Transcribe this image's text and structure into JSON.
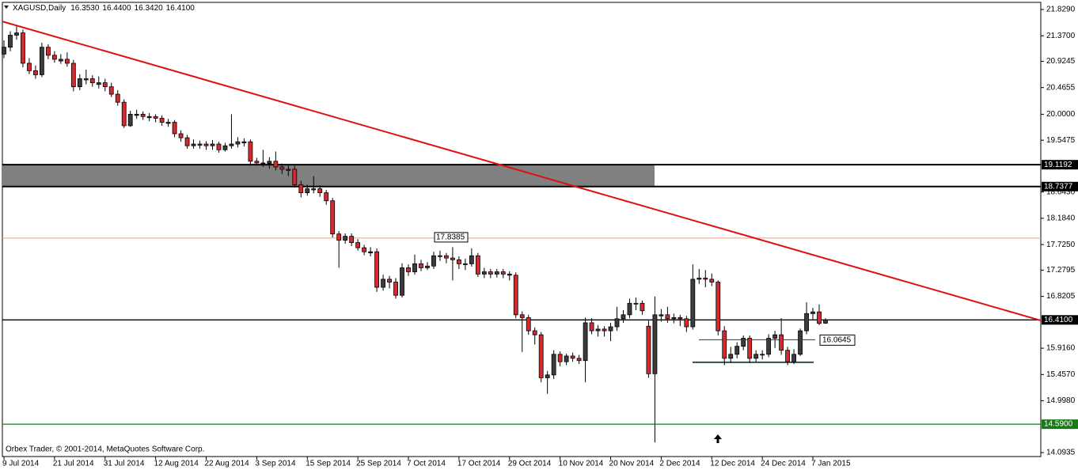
{
  "chart_data": {
    "type": "candlestick",
    "symbol": "XAGUSD,Daily",
    "ohlc_labels": [
      "16.3530",
      "16.4400",
      "16.3420",
      "16.4100"
    ],
    "footer": "Orbex Trader, © 2001-2014, MetaQuotes Software Corp.",
    "ylim": [
      14.025,
      21.953
    ],
    "yticks": [
      {
        "value": 21.829,
        "label": "21.8290"
      },
      {
        "value": 21.37,
        "label": "21.3700"
      },
      {
        "value": 20.9245,
        "label": "20.9245"
      },
      {
        "value": 20.4655,
        "label": "20.4655"
      },
      {
        "value": 20,
        "label": "20.0000"
      },
      {
        "value": 19.5475,
        "label": "19.5475"
      },
      {
        "value": 18.643,
        "label": "18.6430"
      },
      {
        "value": 18.184,
        "label": "18.1840"
      },
      {
        "value": 17.725,
        "label": "17.7250"
      },
      {
        "value": 17.2795,
        "label": "17.2795"
      },
      {
        "value": 16.8205,
        "label": "16.8205"
      },
      {
        "value": 15.916,
        "label": "15.9160"
      },
      {
        "value": 15.457,
        "label": "15.4570"
      },
      {
        "value": 14.998,
        "label": "14.9980"
      },
      {
        "value": 14.0935,
        "label": "14.0935"
      }
    ],
    "up_color": "#3c3c3c",
    "down_color": "#d42a2f",
    "categories": [
      "9 Jul 2014",
      null,
      null,
      null,
      null,
      null,
      null,
      null,
      "21 Jul 2014",
      null,
      null,
      null,
      null,
      null,
      null,
      null,
      "31 Jul 2014",
      null,
      null,
      null,
      null,
      null,
      null,
      null,
      "12 Aug 2014",
      null,
      null,
      null,
      null,
      null,
      null,
      null,
      "22 Aug 2014",
      null,
      null,
      null,
      null,
      null,
      null,
      null,
      "3 Sep 2014",
      null,
      null,
      null,
      null,
      null,
      null,
      null,
      "15 Sep 2014",
      null,
      null,
      null,
      null,
      null,
      null,
      null,
      "25 Sep 2014",
      null,
      null,
      null,
      null,
      null,
      null,
      null,
      "7 Oct 2014",
      null,
      null,
      null,
      null,
      null,
      null,
      null,
      "17 Oct 2014",
      null,
      null,
      null,
      null,
      null,
      null,
      null,
      "29 Oct 2014",
      null,
      null,
      null,
      null,
      null,
      null,
      null,
      "10 Nov 2014",
      null,
      null,
      null,
      null,
      null,
      null,
      null,
      "20 Nov 2014",
      null,
      null,
      null,
      null,
      null,
      null,
      null,
      "2 Dec 2014",
      null,
      null,
      null,
      null,
      null,
      null,
      null,
      "12 Dec 2014",
      null,
      null,
      null,
      null,
      null,
      null,
      null,
      "24 Dec 2014",
      null,
      null,
      null,
      null,
      null,
      null,
      null,
      "7 Jan 2015",
      null,
      null
    ],
    "candles": [
      [
        21.05,
        21.29,
        20.98,
        21.17
      ],
      [
        21.17,
        21.45,
        21.1,
        21.38
      ],
      [
        21.38,
        21.55,
        21.3,
        21.42
      ],
      [
        21.42,
        21.48,
        20.82,
        20.89
      ],
      [
        20.89,
        20.98,
        20.7,
        20.76
      ],
      [
        20.76,
        20.85,
        20.62,
        20.69
      ],
      [
        20.69,
        21.25,
        20.65,
        21.17
      ],
      [
        21.17,
        21.22,
        20.96,
        21.03
      ],
      [
        21.03,
        21.1,
        20.9,
        20.96
      ],
      [
        20.93,
        21.05,
        20.88,
        20.96
      ],
      [
        20.96,
        21.08,
        20.83,
        20.89
      ],
      [
        20.89,
        20.95,
        20.4,
        20.48
      ],
      [
        20.48,
        20.7,
        20.42,
        20.62
      ],
      [
        20.6,
        20.78,
        20.52,
        20.62
      ],
      [
        20.62,
        20.68,
        20.48,
        20.55
      ],
      [
        20.52,
        20.66,
        20.45,
        20.55
      ],
      [
        20.55,
        20.62,
        20.4,
        20.48
      ],
      [
        20.48,
        20.55,
        20.3,
        20.35
      ],
      [
        20.35,
        20.42,
        20.15,
        20.21
      ],
      [
        20.21,
        20.26,
        19.76,
        19.8
      ],
      [
        19.8,
        20.06,
        19.78,
        20
      ],
      [
        19.98,
        20.08,
        19.92,
        20
      ],
      [
        20,
        20.05,
        19.9,
        19.96
      ],
      [
        19.94,
        20.02,
        19.88,
        19.96
      ],
      [
        19.96,
        20,
        19.86,
        19.93
      ],
      [
        19.93,
        19.98,
        19.8,
        19.86
      ],
      [
        19.84,
        19.92,
        19.78,
        19.86
      ],
      [
        19.86,
        19.9,
        19.6,
        19.66
      ],
      [
        19.66,
        19.72,
        19.52,
        19.59
      ],
      [
        19.59,
        19.64,
        19.4,
        19.45
      ],
      [
        19.45,
        19.56,
        19.4,
        19.48
      ],
      [
        19.46,
        19.54,
        19.4,
        19.48
      ],
      [
        19.48,
        19.53,
        19.38,
        19.45
      ],
      [
        19.45,
        19.55,
        19.38,
        19.48
      ],
      [
        19.48,
        19.52,
        19.33,
        19.38
      ],
      [
        19.38,
        19.5,
        19.35,
        19.45
      ],
      [
        19.45,
        20,
        19.4,
        19.48
      ],
      [
        19.48,
        19.6,
        19.42,
        19.52
      ],
      [
        19.5,
        19.58,
        19.44,
        19.52
      ],
      [
        19.52,
        19.56,
        19.1,
        19.18
      ],
      [
        19.18,
        19.24,
        19.1,
        19.15
      ],
      [
        19.15,
        19.38,
        19.08,
        19.14
      ],
      [
        19.14,
        19.25,
        19.05,
        19.18
      ],
      [
        19.18,
        19.35,
        19.02,
        19.08
      ],
      [
        19.08,
        19.14,
        18.96,
        19.04
      ],
      [
        19.02,
        19.12,
        18.92,
        19.04
      ],
      [
        19.04,
        19.1,
        18.72,
        18.77
      ],
      [
        18.77,
        18.84,
        18.55,
        18.63
      ],
      [
        18.63,
        18.77,
        18.58,
        18.7
      ],
      [
        18.68,
        18.92,
        18.62,
        18.7
      ],
      [
        18.7,
        18.76,
        18.56,
        18.63
      ],
      [
        18.63,
        18.68,
        18.42,
        18.49
      ],
      [
        18.49,
        18.54,
        17.85,
        17.91
      ],
      [
        17.91,
        17.96,
        17.32,
        17.8
      ],
      [
        17.8,
        17.92,
        17.74,
        17.87
      ],
      [
        17.87,
        17.92,
        17.7,
        17.76
      ],
      [
        17.76,
        17.82,
        17.62,
        17.67
      ],
      [
        17.67,
        17.72,
        17.54,
        17.6
      ],
      [
        17.58,
        17.68,
        17.52,
        17.6
      ],
      [
        17.6,
        17.66,
        16.9,
        16.98
      ],
      [
        16.98,
        17.2,
        16.92,
        17.12
      ],
      [
        17.12,
        17.18,
        16.96,
        17.07
      ],
      [
        17.07,
        17.14,
        16.78,
        16.84
      ],
      [
        16.84,
        17.4,
        16.8,
        17.32
      ],
      [
        17.32,
        17.38,
        17.18,
        17.25
      ],
      [
        17.25,
        17.55,
        17.2,
        17.39
      ],
      [
        17.39,
        17.46,
        17.26,
        17.32
      ],
      [
        17.32,
        17.42,
        17.28,
        17.35
      ],
      [
        17.35,
        17.6,
        17.3,
        17.53
      ],
      [
        17.53,
        17.62,
        17.44,
        17.53
      ],
      [
        17.53,
        17.58,
        17.4,
        17.49
      ],
      [
        17.49,
        17.68,
        17.1,
        17.46
      ],
      [
        17.46,
        17.52,
        17.3,
        17.39
      ],
      [
        17.39,
        17.48,
        17.28,
        17.39
      ],
      [
        17.39,
        17.66,
        17.34,
        17.53
      ],
      [
        17.53,
        17.58,
        17.16,
        17.21
      ],
      [
        17.21,
        17.32,
        17.14,
        17.25
      ],
      [
        17.25,
        17.3,
        17.14,
        17.21
      ],
      [
        17.21,
        17.3,
        17.15,
        17.25
      ],
      [
        17.25,
        17.3,
        17.14,
        17.21
      ],
      [
        17.21,
        17.26,
        17.1,
        17.19
      ],
      [
        17.19,
        17.24,
        16.44,
        16.5
      ],
      [
        16.5,
        16.56,
        15.85,
        16.45
      ],
      [
        16.45,
        16.5,
        16.15,
        16.22
      ],
      [
        16.22,
        16.28,
        15.98,
        16.15
      ],
      [
        16.15,
        16.2,
        15.32,
        15.4
      ],
      [
        15.4,
        15.52,
        15.12,
        15.45
      ],
      [
        15.45,
        15.88,
        15.38,
        15.81
      ],
      [
        15.81,
        15.86,
        15.6,
        15.68
      ],
      [
        15.68,
        15.82,
        15.62,
        15.78
      ],
      [
        15.78,
        15.84,
        15.68,
        15.74
      ],
      [
        15.74,
        15.8,
        15.64,
        15.7
      ],
      [
        15.7,
        16.45,
        15.32,
        16.36
      ],
      [
        16.36,
        16.44,
        16.16,
        16.22
      ],
      [
        16.22,
        16.32,
        16.12,
        16.25
      ],
      [
        16.25,
        16.3,
        16.12,
        16.22
      ],
      [
        16.22,
        16.36,
        16.04,
        16.29
      ],
      [
        16.29,
        16.64,
        16.22,
        16.43
      ],
      [
        16.43,
        16.58,
        16.36,
        16.5
      ],
      [
        16.5,
        16.78,
        16.44,
        16.7
      ],
      [
        16.7,
        16.8,
        16.58,
        16.7
      ],
      [
        16.7,
        16.75,
        16.5,
        16.57
      ],
      [
        16.3,
        16.4,
        15.4,
        15.47
      ],
      [
        15.47,
        16.82,
        14.27,
        16.5
      ],
      [
        16.48,
        16.6,
        16.38,
        16.5
      ],
      [
        16.5,
        16.64,
        16.36,
        16.43
      ],
      [
        16.43,
        16.52,
        16.35,
        16.45
      ],
      [
        16.45,
        16.5,
        16.3,
        16.43
      ],
      [
        16.43,
        16.48,
        16.2,
        16.29
      ],
      [
        16.29,
        17.38,
        16.24,
        17.12
      ],
      [
        17.12,
        17.3,
        17.04,
        17.14
      ],
      [
        17.14,
        17.28,
        16.98,
        17.12
      ],
      [
        17.12,
        17.22,
        17,
        17.07
      ],
      [
        17.07,
        17.1,
        16.14,
        16.22
      ],
      [
        16.22,
        16.3,
        15.62,
        15.74
      ],
      [
        15.74,
        15.94,
        15.66,
        15.81
      ],
      [
        15.81,
        16.02,
        15.74,
        15.95
      ],
      [
        15.95,
        16.14,
        15.88,
        16.09
      ],
      [
        16.09,
        16.14,
        15.66,
        15.74
      ],
      [
        15.74,
        15.88,
        15.68,
        15.81
      ],
      [
        15.81,
        15.88,
        15.72,
        15.81
      ],
      [
        15.81,
        16.16,
        15.76,
        16.09
      ],
      [
        16.09,
        16.22,
        15.92,
        16.15
      ],
      [
        16.15,
        16.44,
        15.8,
        15.88
      ],
      [
        15.88,
        15.94,
        15.62,
        15.68
      ],
      [
        15.68,
        15.9,
        15.64,
        15.81
      ],
      [
        15.81,
        16.26,
        15.78,
        16.22
      ],
      [
        16.22,
        16.72,
        16.16,
        16.52
      ],
      [
        16.52,
        16.62,
        16.42,
        16.55
      ],
      [
        16.55,
        16.68,
        16.32,
        16.35
      ],
      [
        16.353,
        16.44,
        16.342,
        16.41
      ]
    ],
    "zone": {
      "top": 19.1192,
      "bottom": 18.7377,
      "color": "#808080"
    },
    "levels": [
      {
        "value": 19.1192,
        "label": "19.1192",
        "color": "#000000"
      },
      {
        "value": 18.7377,
        "label": "18.7377",
        "color": "#000000"
      },
      {
        "value": 16.41,
        "label": "16.4100",
        "color": "#000000"
      },
      {
        "value": 14.59,
        "label": "14.5900",
        "color": "#1a7a1a"
      }
    ],
    "marker_line": {
      "value": 17.8385,
      "label": "17.8385",
      "color": "#e8a08a"
    },
    "short_lines": [
      {
        "value": 16.0645,
        "label": "16.0645",
        "color": "#333333"
      },
      {
        "value": 15.67,
        "color": "#2f4f4f"
      }
    ],
    "trendline": {
      "y": [
        21.62,
        16.4
      ],
      "color": "#e01010"
    }
  }
}
